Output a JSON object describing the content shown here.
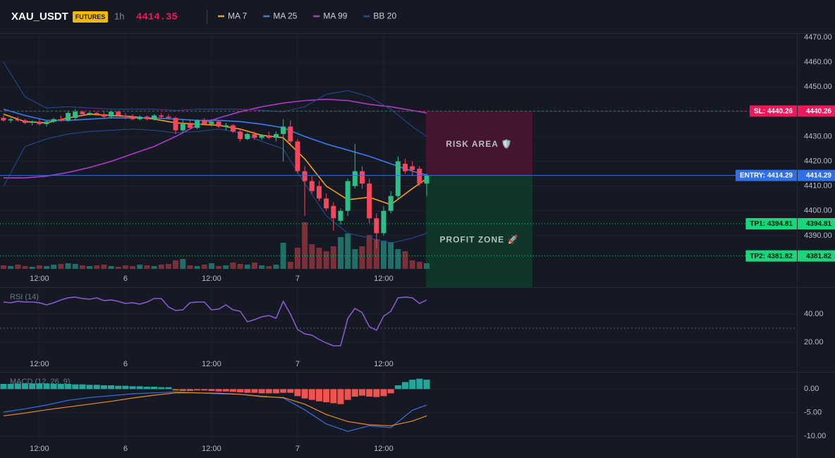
{
  "header": {
    "symbol": "XAU_USDT",
    "badge": "FUTURES",
    "interval": "1h",
    "price": 4414.35
  },
  "chart_data": [
    {
      "type": "candlestick",
      "categories": [
        null,
        null,
        null,
        null,
        null,
        "12:00",
        null,
        null,
        null,
        null,
        null,
        null,
        null,
        null,
        null,
        null,
        null,
        "6",
        null,
        null,
        null,
        null,
        null,
        null,
        null,
        null,
        null,
        null,
        null,
        "12:00",
        null,
        null,
        null,
        null,
        null,
        null,
        null,
        null,
        null,
        null,
        null,
        "7",
        null,
        null,
        null,
        null,
        null,
        null,
        null,
        null,
        null,
        null,
        null,
        "12:00",
        null,
        null,
        null,
        null,
        null,
        null
      ],
      "open": [
        4437.5,
        4436.5,
        4437,
        4436.5,
        4435.5,
        4436,
        4435,
        4436,
        4437,
        4436.5,
        4437.5,
        4440,
        4439,
        4439.5,
        4439,
        4438,
        4440,
        4438.5,
        4438,
        4437,
        4438,
        4437,
        4438.5,
        4438,
        4437.5,
        4432.5,
        4435,
        4433.5,
        4436.5,
        4435,
        4436,
        4434,
        4434.5,
        4432,
        4429,
        4431,
        4429.5,
        4430.5,
        4429.5,
        4431,
        4434,
        4428,
        4416,
        4412,
        4410,
        4405,
        4402,
        4396,
        4400,
        4410,
        4416,
        4411,
        4397,
        4391,
        4400,
        4406,
        4419,
        4418,
        4417,
        4411
      ],
      "high": [
        4438.5,
        4437.5,
        4438,
        4437,
        4436.5,
        4437,
        4436.5,
        4437.5,
        4438.5,
        4440.5,
        4441,
        4440.5,
        4440,
        4440,
        4440.5,
        4440.5,
        4440.5,
        4439.5,
        4439,
        4438.5,
        4438.5,
        4439,
        4439.5,
        4439,
        4438,
        4437,
        4437,
        4437,
        4437.5,
        4437,
        4436.5,
        4435.5,
        4435,
        4433,
        4431.5,
        4432,
        4431,
        4432,
        4432,
        4437,
        4436.5,
        4429,
        4418,
        4414,
        4412,
        4407,
        4403.5,
        4401,
        4413,
        4427,
        4418,
        4413,
        4399,
        4402,
        4408,
        4422,
        4421,
        4420,
        4418,
        4415
      ],
      "low": [
        4436,
        4435.5,
        4436,
        4435,
        4434.5,
        4434.5,
        4434,
        4435.5,
        4436,
        4436,
        4436.5,
        4438.5,
        4438.5,
        4438.5,
        4437.5,
        4437.5,
        4438,
        4437,
        4436.5,
        4436.5,
        4436.5,
        4436.5,
        4437.5,
        4437,
        4431,
        4431.5,
        4433,
        4433,
        4434.5,
        4434,
        4433.5,
        4432.5,
        4431.5,
        4428,
        4428.5,
        4428.5,
        4428.5,
        4429,
        4428,
        4420,
        4427,
        4415,
        4398,
        4407,
        4404,
        4400,
        4392,
        4394.5,
        4398,
        4409,
        4409,
        4395,
        4385,
        4390,
        4399,
        4405,
        4415,
        4414,
        4410,
        4406
      ],
      "close": [
        4436.5,
        4437,
        4436.5,
        4435.5,
        4436,
        4435,
        4436,
        4437,
        4436.5,
        4439.5,
        4440,
        4439,
        4439.5,
        4439,
        4438,
        4440,
        4438.5,
        4438,
        4437,
        4438,
        4437,
        4438.5,
        4438,
        4437.5,
        4432.5,
        4435,
        4433.5,
        4436.5,
        4435,
        4436,
        4434,
        4434.5,
        4432,
        4429,
        4431,
        4429.5,
        4430.5,
        4429.5,
        4431,
        4434,
        4428,
        4416,
        4412,
        4408,
        4405,
        4401,
        4397,
        4400,
        4412,
        4416,
        4411,
        4397,
        4391,
        4400,
        4406,
        4420,
        4416,
        4416.5,
        4411,
        4414.29
      ],
      "volume": [
        5,
        4,
        6,
        4,
        3,
        5,
        4,
        6,
        7,
        8,
        7,
        5,
        4,
        5,
        6,
        4,
        3,
        5,
        4,
        6,
        5,
        4,
        6,
        7,
        12,
        14,
        5,
        4,
        6,
        8,
        4,
        5,
        9,
        7,
        6,
        9,
        5,
        4,
        6,
        37,
        10,
        30,
        66,
        35,
        30,
        25,
        32,
        45,
        50,
        28,
        32,
        48,
        42,
        40,
        38,
        28,
        25,
        12,
        10,
        8
      ],
      "up_color": "#2ebd85",
      "down_color": "#f6465d",
      "volume_up_color": "#1f6f68",
      "volume_down_color": "#7a3038",
      "ylim": [
        4376.6,
        4471.4
      ],
      "yticks": [
        {
          "value": 4470,
          "label": "4470.00"
        },
        {
          "value": 4460,
          "label": "4460.00"
        },
        {
          "value": 4450,
          "label": "4450.00"
        },
        {
          "value": 4440,
          "label": "4440.00"
        },
        {
          "value": 4430,
          "label": "4430.00"
        },
        {
          "value": 4420,
          "label": "4420.00"
        },
        {
          "value": 4410,
          "label": "4410.00"
        },
        {
          "value": 4400,
          "label": "4400.00"
        },
        {
          "value": 4390,
          "label": "4390.00"
        }
      ],
      "grid": true,
      "series": [
        {
          "name": "MA 7",
          "color": "#f59e1b",
          "x": [
            0,
            3,
            6,
            9,
            12,
            15,
            18,
            21,
            24,
            27,
            30,
            33,
            36,
            39,
            42,
            45,
            48,
            51,
            54,
            57,
            59
          ],
          "values": [
            4439,
            4436,
            4435.5,
            4437.5,
            4439,
            4438.5,
            4438,
            4437,
            4435.5,
            4435,
            4434.5,
            4433,
            4430.5,
            4429.5,
            4421,
            4410,
            4404.5,
            4405.5,
            4402.5,
            4409,
            4413
          ]
        },
        {
          "name": "MA 25",
          "color": "#3b7cf2",
          "x": [
            0,
            3,
            6,
            9,
            12,
            15,
            18,
            21,
            24,
            27,
            30,
            33,
            36,
            39,
            42,
            45,
            48,
            51,
            54,
            57,
            59
          ],
          "values": [
            4441,
            4438.5,
            4436.5,
            4436.5,
            4437,
            4437.5,
            4437.5,
            4437.5,
            4437,
            4436.5,
            4436.5,
            4436,
            4435,
            4433.5,
            4430,
            4427,
            4424.5,
            4422,
            4419,
            4416,
            4414.5
          ]
        },
        {
          "name": "MA 99",
          "color": "#b03ac6",
          "x": [
            0,
            3,
            6,
            9,
            12,
            15,
            18,
            21,
            24,
            27,
            30,
            33,
            36,
            39,
            42,
            45,
            48,
            51,
            54,
            57,
            59
          ],
          "values": [
            4413.3,
            4413.3,
            4414,
            4415.5,
            4417.5,
            4420,
            4423,
            4426,
            4430,
            4434.5,
            4437.5,
            4440,
            4442,
            4443.5,
            4444.5,
            4445,
            4444.5,
            4443,
            4442,
            4440.5,
            4439.5
          ]
        },
        {
          "name": "BB 20",
          "color": "#2a4a9a",
          "x": [
            0,
            3,
            6,
            9,
            12,
            15,
            18,
            21,
            24,
            27,
            30,
            33,
            36,
            39,
            42,
            45,
            48,
            51,
            54,
            57,
            59
          ],
          "values": [
            4460,
            4446,
            4441.5,
            4442,
            4441.5,
            4441,
            4441,
            4441,
            4440.5,
            4441,
            4441,
            4441,
            4440.5,
            4440,
            4442,
            4447,
            4448.5,
            4446,
            4441,
            4434,
            4430
          ],
          "lower": [
            4410,
            4426,
            4429,
            4431,
            4432,
            4432.5,
            4433,
            4432.5,
            4431.5,
            4432,
            4433,
            4431.5,
            4428,
            4425,
            4411,
            4398,
            4391,
            4389,
            4387,
            4389,
            4391
          ]
        }
      ],
      "levels": [
        {
          "label": "SL: 4440.26",
          "value": 4440.26,
          "color": "#f0185a",
          "line_style": "dashed"
        },
        {
          "label": "ENTRY: 4414.29",
          "value": 4414.29,
          "color": "#2f6fe8",
          "line_style": "solid"
        },
        {
          "label": "TP1: 4394.81",
          "value": 4394.81,
          "color": "#19d67a",
          "line_style": "dotted"
        },
        {
          "label": "TP2: 4381.82",
          "value": 4381.82,
          "color": "#19d67a",
          "line_style": "dotted"
        }
      ],
      "zones": [
        {
          "label": "RISK AREA 🛡️",
          "color": "#4a1530",
          "text_color": "#e8306a"
        },
        {
          "label": "PROFIT ZONE 🚀",
          "color": "#0e3a2a",
          "text_color": "#1fcf78"
        }
      ]
    },
    {
      "type": "line",
      "title": "RSI (14)",
      "categories": [
        null,
        null,
        null,
        null,
        null,
        "12:00",
        null,
        null,
        null,
        null,
        null,
        null,
        null,
        null,
        null,
        null,
        null,
        "6",
        null,
        null,
        null,
        null,
        null,
        null,
        null,
        null,
        null,
        null,
        null,
        "12:00",
        null,
        null,
        null,
        null,
        null,
        null,
        null,
        null,
        null,
        null,
        null,
        "7",
        null,
        null,
        null,
        null,
        null,
        null,
        null,
        null,
        null,
        null,
        null,
        "12:00",
        null,
        null,
        null,
        null,
        null,
        null
      ],
      "values": [
        48.5,
        48,
        49,
        48.5,
        48.5,
        48,
        46.5,
        48,
        50,
        51.5,
        52,
        51,
        50.5,
        51.5,
        49.5,
        50,
        49,
        47.5,
        48,
        47,
        48.5,
        51,
        51,
        45,
        42.5,
        43,
        48,
        48.5,
        48.5,
        43,
        43.5,
        46.5,
        43,
        42,
        34.5,
        36,
        38,
        39,
        37,
        49,
        40,
        29,
        26,
        25,
        22,
        19.5,
        17.5,
        17.5,
        37,
        44,
        41,
        31,
        28.5,
        38.5,
        42,
        51.5,
        52,
        51.5,
        47.5,
        50
      ],
      "color": "#8e5bd6",
      "ylim": [
        10,
        58.5
      ],
      "yticks": [
        {
          "value": 40,
          "label": "40.00"
        },
        {
          "value": 20,
          "label": "20.00"
        }
      ],
      "reference_line": 30,
      "grid": true
    },
    {
      "type": "macd",
      "title": "MACD (12, 26, 9)",
      "categories": [
        null,
        null,
        null,
        null,
        null,
        "12:00",
        null,
        null,
        null,
        null,
        null,
        null,
        null,
        null,
        null,
        null,
        null,
        "6",
        null,
        null,
        null,
        null,
        null,
        null,
        null,
        null,
        null,
        null,
        null,
        "12:00",
        null,
        null,
        null,
        null,
        null,
        null,
        null,
        null,
        null,
        null,
        null,
        "7",
        null,
        null,
        null,
        null,
        null,
        null,
        null,
        null,
        null,
        null,
        null,
        "12:00",
        null,
        null,
        null,
        null,
        null,
        null
      ],
      "histogram": [
        1.1,
        1.1,
        1.2,
        1.2,
        1.2,
        1.2,
        1.2,
        1.1,
        1.1,
        1.1,
        1.0,
        1.0,
        0.9,
        0.9,
        0.8,
        0.8,
        0.7,
        0.7,
        0.6,
        0.6,
        0.5,
        0.5,
        0.4,
        0.4,
        -0.3,
        -0.4,
        -0.4,
        -0.3,
        -0.3,
        -0.4,
        -0.5,
        -0.5,
        -0.6,
        -0.7,
        -0.8,
        -0.8,
        -0.9,
        -0.9,
        -0.9,
        -0.8,
        -0.8,
        -1.5,
        -2,
        -2.3,
        -2.6,
        -2.8,
        -3,
        -3.2,
        -2.3,
        -1.6,
        -1.4,
        -1.6,
        -1.7,
        -1.5,
        -0.9,
        0.8,
        1.5,
        2,
        2.2,
        2
      ],
      "up_color": "#26a69a",
      "down_color": "#ef5350",
      "series": [
        {
          "color": "#3b6fe0",
          "x": [
            0,
            3,
            6,
            9,
            12,
            15,
            18,
            21,
            24,
            27,
            30,
            33,
            36,
            39,
            42,
            45,
            48,
            51,
            54,
            57,
            59
          ],
          "values": [
            -4.9,
            -4.2,
            -3.4,
            -2.4,
            -1.8,
            -1.4,
            -1,
            -0.8,
            -0.6,
            -0.8,
            -1,
            -1.1,
            -1.5,
            -1.9,
            -4.4,
            -7.4,
            -9,
            -7.8,
            -8.2,
            -4.5,
            -3.4
          ]
        },
        {
          "color": "#f08a24",
          "x": [
            0,
            3,
            6,
            9,
            12,
            15,
            18,
            21,
            24,
            27,
            30,
            33,
            36,
            39,
            42,
            45,
            48,
            51,
            54,
            57,
            59
          ],
          "values": [
            -5.7,
            -5.1,
            -4.4,
            -3.8,
            -3.2,
            -2.6,
            -1.9,
            -1.3,
            -0.8,
            -0.8,
            -0.9,
            -1.1,
            -1.6,
            -1.8,
            -3.2,
            -5.4,
            -6.9,
            -7.6,
            -7.8,
            -6.8,
            -5.7
          ]
        }
      ],
      "ylim": [
        -11.8,
        3.5
      ],
      "yticks": [
        {
          "value": 0,
          "label": "0.00"
        },
        {
          "value": -5,
          "label": "-5.00"
        },
        {
          "value": -10,
          "label": "-10.00"
        }
      ],
      "grid": true
    }
  ]
}
